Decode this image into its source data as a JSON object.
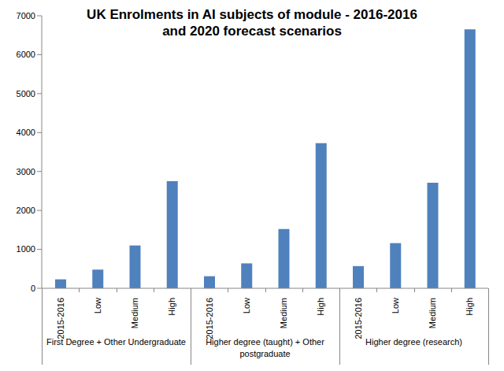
{
  "chart_data": {
    "type": "bar",
    "title": [
      "UK Enrolments in AI subjects of module - 2016-2016",
      "and 2020 forecast scenarios"
    ],
    "categories": [
      "2015-2016",
      "Low",
      "Medium",
      "High",
      "2015-2016",
      "Low",
      "Medium",
      "High",
      "2015-2016",
      "Low",
      "Medium",
      "High"
    ],
    "groups": [
      "First Degree + Other Undergraduate",
      "Higher degree (taught) + Other postgraduate",
      "Higher degree (research)"
    ],
    "values": [
      230,
      480,
      1100,
      2750,
      310,
      640,
      1520,
      3730,
      570,
      1160,
      2710,
      6650
    ],
    "color": "#4f81bd",
    "ylim": [
      0,
      7000
    ],
    "yticks": [
      0,
      1000,
      2000,
      3000,
      4000,
      5000,
      6000,
      7000
    ],
    "grid": false
  }
}
